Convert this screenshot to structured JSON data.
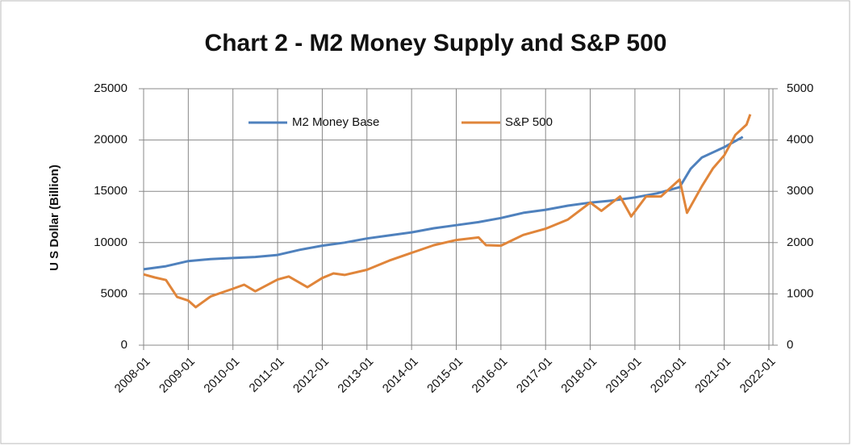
{
  "chart_data": {
    "type": "line",
    "title": "Chart 2 - M2 Money Supply and S&P 500",
    "y_label": "U S Dollar  (Billion)",
    "xlim": [
      "2008-01",
      "2022-01"
    ],
    "xticks": [
      "2008-01",
      "2009-01",
      "2010-01",
      "2011-01",
      "2012-01",
      "2013-01",
      "2014-01",
      "2015-01",
      "2016-01",
      "2017-01",
      "2018-01",
      "2019-01",
      "2020-01",
      "2021-01",
      "2022-01"
    ],
    "ylim": [
      0,
      25000
    ],
    "yticks": [
      0,
      5000,
      10000,
      15000,
      20000,
      25000
    ],
    "y2lim": [
      0,
      5000
    ],
    "y2ticks": [
      0,
      1000,
      2000,
      3000,
      4000,
      5000
    ],
    "grid": true,
    "legend": "top",
    "series": [
      {
        "name": "M2 Money Base",
        "color": "#4f81bd",
        "x": [
          "2008-01",
          "2008-07",
          "2009-01",
          "2009-07",
          "2010-01",
          "2010-07",
          "2011-01",
          "2011-07",
          "2012-01",
          "2012-07",
          "2013-01",
          "2013-07",
          "2014-01",
          "2014-07",
          "2015-01",
          "2015-07",
          "2016-01",
          "2016-07",
          "2017-01",
          "2017-07",
          "2018-01",
          "2018-07",
          "2019-01",
          "2019-07",
          "2020-01",
          "2020-04",
          "2020-07",
          "2021-01",
          "2021-06"
        ],
        "values": [
          7400,
          7700,
          8200,
          8400,
          8500,
          8600,
          8800,
          9300,
          9700,
          10000,
          10400,
          10700,
          11000,
          11400,
          11700,
          12000,
          12400,
          12900,
          13200,
          13600,
          13900,
          14100,
          14400,
          14800,
          15400,
          17200,
          18300,
          19300,
          20300
        ]
      },
      {
        "name": "S&P 500",
        "color": "#e0853a",
        "axis": "y2",
        "x": [
          "2008-01",
          "2008-04",
          "2008-07",
          "2008-10",
          "2009-01",
          "2009-03",
          "2009-07",
          "2010-01",
          "2010-04",
          "2010-07",
          "2011-01",
          "2011-04",
          "2011-09",
          "2012-01",
          "2012-04",
          "2012-07",
          "2013-01",
          "2013-07",
          "2014-01",
          "2014-07",
          "2015-01",
          "2015-07",
          "2015-09",
          "2016-01",
          "2016-07",
          "2017-01",
          "2017-07",
          "2018-01",
          "2018-04",
          "2018-09",
          "2018-12",
          "2019-04",
          "2019-08",
          "2020-01",
          "2020-03",
          "2020-07",
          "2020-10",
          "2021-01",
          "2021-04",
          "2021-07",
          "2021-08"
        ],
        "values": [
          1380,
          1320,
          1270,
          940,
          870,
          740,
          950,
          1100,
          1180,
          1050,
          1280,
          1340,
          1130,
          1310,
          1400,
          1370,
          1470,
          1650,
          1800,
          1950,
          2050,
          2100,
          1950,
          1940,
          2150,
          2270,
          2450,
          2780,
          2620,
          2900,
          2510,
          2900,
          2900,
          3230,
          2580,
          3100,
          3450,
          3700,
          4100,
          4300,
          4500
        ]
      }
    ]
  }
}
